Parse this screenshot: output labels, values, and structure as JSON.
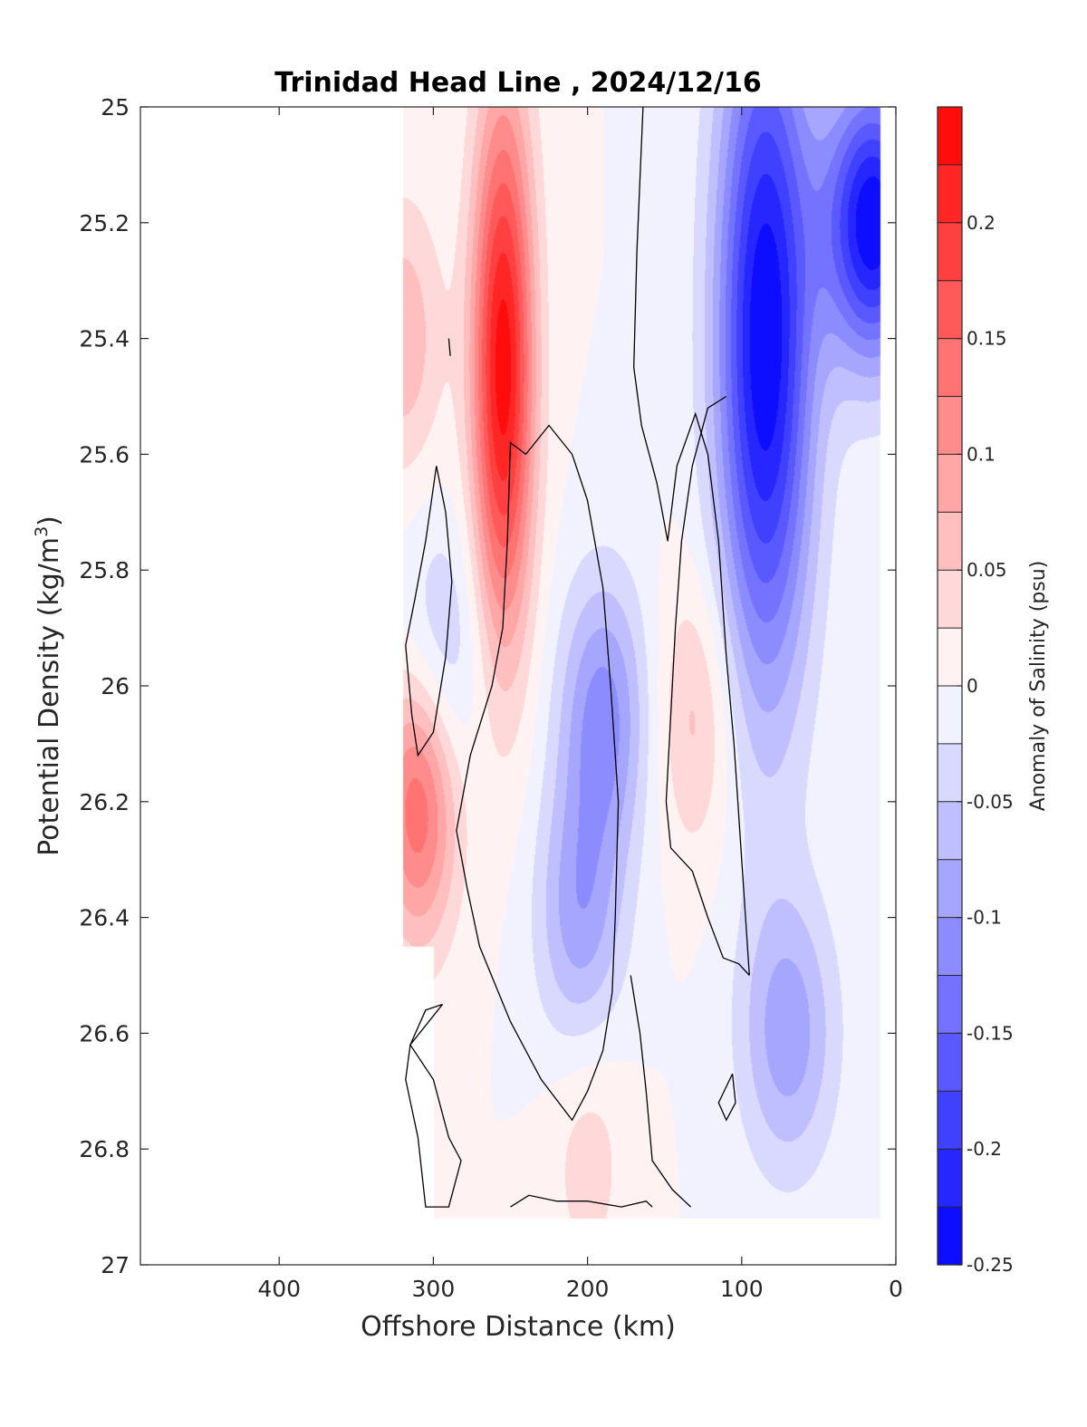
{
  "chart_data": {
    "type": "heatmap",
    "subtype": "filled-contour",
    "title": "Trinidad Head Line , 2024/12/16",
    "xlabel": "Offshore Distance (km)",
    "ylabel_main": "Potential Density (kg/m",
    "ylabel_sup": "3",
    "ylabel_tail": ")",
    "xlim": [
      490,
      0
    ],
    "x_reversed": true,
    "ylim": [
      25,
      27
    ],
    "y_reversed": true,
    "x_ticks": [
      400,
      300,
      200,
      100,
      0
    ],
    "y_ticks": [
      25,
      25.2,
      25.4,
      25.6,
      25.8,
      26,
      26.2,
      26.4,
      26.6,
      26.8,
      27
    ],
    "y_tick_labels": [
      "25",
      "25.2",
      "25.4",
      "25.6",
      "25.8",
      "26",
      "26.2",
      "26.4",
      "26.6",
      "26.8",
      "27"
    ],
    "colorbar": {
      "label": "Anomaly of Salinity (psu)",
      "range": [
        -0.25,
        0.25
      ],
      "levels": 20,
      "ticks": [
        -0.25,
        -0.2,
        -0.15,
        -0.1,
        -0.05,
        0,
        0.05,
        0.1,
        0.15,
        0.2
      ],
      "tick_labels": [
        "-0.25",
        "-0.2",
        "-0.15",
        "-0.1",
        "-0.05",
        "0",
        "0.05",
        "0.1",
        "0.15",
        "0.2"
      ],
      "low_color": "#0000ff",
      "mid_color": "#ffffff",
      "high_color": "#ff0000"
    },
    "data_extent_x": [
      320,
      10
    ],
    "field_features": [
      {
        "type": "max",
        "x": 255,
        "y": 25.45,
        "value": 0.24
      },
      {
        "type": "max",
        "x": 320,
        "y": 25.4,
        "value": 0.07
      },
      {
        "type": "max",
        "x": 310,
        "y": 26.2,
        "value": 0.15
      },
      {
        "type": "max",
        "x": 130,
        "y": 26.05,
        "value": 0.06
      },
      {
        "type": "max",
        "x": 200,
        "y": 26.8,
        "value": 0.04
      },
      {
        "type": "min",
        "x": 85,
        "y": 25.4,
        "value": -0.25
      },
      {
        "type": "min",
        "x": 15,
        "y": 25.2,
        "value": -0.25
      },
      {
        "type": "min",
        "x": 190,
        "y": 26.05,
        "value": -0.11
      },
      {
        "type": "min",
        "x": 295,
        "y": 25.95,
        "value": -0.06
      },
      {
        "type": "min",
        "x": 70,
        "y": 26.6,
        "value": -0.09
      },
      {
        "type": "min",
        "x": 205,
        "y": 26.4,
        "value": -0.09
      }
    ],
    "zero_contours": [
      [
        [
          164,
          25
        ],
        [
          168,
          25.25
        ],
        [
          170,
          25.45
        ],
        [
          165,
          25.55
        ],
        [
          155,
          25.65
        ],
        [
          148,
          25.75
        ],
        [
          142,
          25.62
        ],
        [
          130,
          25.53
        ],
        [
          122,
          25.6
        ],
        [
          115,
          25.75
        ],
        [
          110,
          25.95
        ],
        [
          105,
          26.1
        ],
        [
          100,
          26.3
        ],
        [
          95,
          26.5
        ]
      ],
      [
        [
          95,
          26.5
        ],
        [
          102,
          26.48
        ],
        [
          112,
          26.47
        ],
        [
          122,
          26.4
        ],
        [
          132,
          26.32
        ],
        [
          146,
          26.28
        ],
        [
          149,
          26.2
        ],
        [
          146,
          26.05
        ],
        [
          143,
          25.9
        ],
        [
          139,
          25.75
        ],
        [
          132,
          25.62
        ],
        [
          122,
          25.52
        ],
        [
          110,
          25.5
        ]
      ],
      [
        [
          290,
          25.4
        ],
        [
          289,
          25.43
        ]
      ],
      [
        [
          298,
          25.62
        ],
        [
          305,
          25.75
        ],
        [
          312,
          25.85
        ],
        [
          318,
          25.93
        ],
        [
          314,
          26.05
        ],
        [
          310,
          26.12
        ],
        [
          300,
          26.08
        ],
        [
          292,
          25.95
        ],
        [
          288,
          25.82
        ],
        [
          292,
          25.7
        ],
        [
          298,
          25.62
        ]
      ],
      [
        [
          184,
          26.53
        ],
        [
          190,
          26.63
        ],
        [
          200,
          26.7
        ],
        [
          210,
          26.75
        ],
        [
          230,
          26.68
        ],
        [
          250,
          26.58
        ],
        [
          270,
          26.45
        ],
        [
          278,
          26.35
        ],
        [
          285,
          26.25
        ],
        [
          276,
          26.12
        ],
        [
          262,
          26.0
        ],
        [
          255,
          25.9
        ],
        [
          252,
          25.75
        ],
        [
          250,
          25.58
        ],
        [
          240,
          25.6
        ],
        [
          225,
          25.55
        ],
        [
          210,
          25.6
        ],
        [
          200,
          25.68
        ],
        [
          190,
          25.83
        ],
        [
          185,
          26.0
        ],
        [
          180,
          26.2
        ],
        [
          182,
          26.4
        ],
        [
          184,
          26.53
        ]
      ],
      [
        [
          294,
          26.55
        ],
        [
          305,
          26.56
        ],
        [
          315,
          26.62
        ],
        [
          300,
          26.68
        ],
        [
          290,
          26.78
        ],
        [
          282,
          26.82
        ],
        [
          290,
          26.9
        ],
        [
          305,
          26.9
        ],
        [
          310,
          26.78
        ],
        [
          318,
          26.68
        ],
        [
          315,
          26.62
        ],
        [
          300,
          26.57
        ],
        [
          294,
          26.55
        ]
      ],
      [
        [
          106,
          26.67
        ],
        [
          115,
          26.72
        ],
        [
          110,
          26.75
        ],
        [
          104,
          26.72
        ],
        [
          106,
          26.67
        ]
      ],
      [
        [
          250,
          26.9
        ],
        [
          238,
          26.88
        ],
        [
          220,
          26.89
        ],
        [
          200,
          26.89
        ],
        [
          178,
          26.9
        ],
        [
          162,
          26.89
        ],
        [
          158,
          26.9
        ]
      ],
      [
        [
          172,
          26.5
        ],
        [
          166,
          26.6
        ],
        [
          162,
          26.7
        ],
        [
          158,
          26.82
        ],
        [
          145,
          26.87
        ],
        [
          133,
          26.9
        ]
      ]
    ]
  }
}
